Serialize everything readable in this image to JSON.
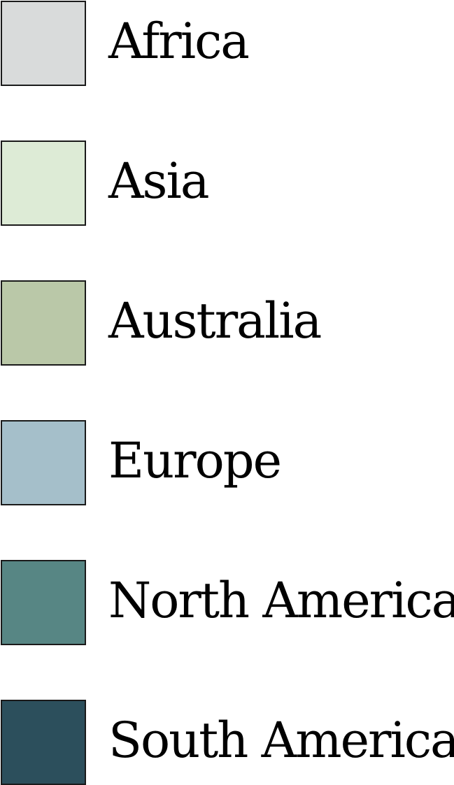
{
  "legend": {
    "items": [
      {
        "label": "Africa",
        "color": "#d9dbdb"
      },
      {
        "label": "Asia",
        "color": "#ddebd6"
      },
      {
        "label": "Australia",
        "color": "#bac8a8"
      },
      {
        "label": "Europe",
        "color": "#a5bfca"
      },
      {
        "label": "North America",
        "color": "#578684"
      },
      {
        "label": "South America",
        "color": "#2c4f5c"
      }
    ]
  }
}
